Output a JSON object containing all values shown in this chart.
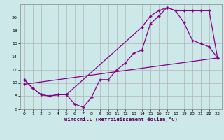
{
  "xlabel": "Windchill (Refroidissement éolien,°C)",
  "bg_color": "#cce8e8",
  "line_color": "#880088",
  "grid_color": "#aaaaaa",
  "xlim": [
    -0.5,
    23.5
  ],
  "ylim": [
    6,
    22
  ],
  "yticks": [
    6,
    8,
    10,
    12,
    14,
    16,
    18,
    20
  ],
  "xticks": [
    0,
    1,
    2,
    3,
    4,
    5,
    6,
    7,
    8,
    9,
    10,
    11,
    12,
    13,
    14,
    15,
    16,
    17,
    18,
    19,
    20,
    21,
    22,
    23
  ],
  "line1_x": [
    0,
    1,
    2,
    3,
    4,
    5,
    6,
    7,
    8,
    9,
    10,
    11,
    12,
    13,
    14,
    15,
    16,
    17,
    18,
    19,
    20,
    21,
    22,
    23
  ],
  "line1_y": [
    10.5,
    9.2,
    8.2,
    8.0,
    8.2,
    8.2,
    6.8,
    6.3,
    7.8,
    10.5,
    10.5,
    12.0,
    13.0,
    14.5,
    15.0,
    19.0,
    20.2,
    21.5,
    21.0,
    19.2,
    16.5,
    16.0,
    15.5,
    13.8
  ],
  "line2_x": [
    0,
    1,
    2,
    3,
    4,
    5,
    14,
    15,
    16,
    17,
    18,
    19,
    20,
    21,
    22,
    23
  ],
  "line2_y": [
    10.5,
    9.2,
    8.2,
    8.0,
    8.2,
    8.2,
    18.5,
    20.2,
    21.0,
    21.5,
    21.0,
    21.0,
    21.0,
    21.0,
    21.0,
    13.8
  ],
  "line3_x": [
    0,
    23
  ],
  "line3_y": [
    9.8,
    13.8
  ]
}
